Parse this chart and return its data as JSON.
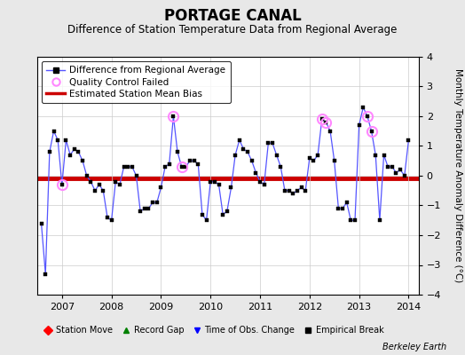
{
  "title": "PORTAGE CANAL",
  "subtitle": "Difference of Station Temperature Data from Regional Average",
  "ylabel": "Monthly Temperature Anomaly Difference (°C)",
  "xlim": [
    2006.5,
    2014.2
  ],
  "ylim": [
    -4,
    4
  ],
  "yticks": [
    -4,
    -3,
    -2,
    -1,
    0,
    1,
    2,
    3,
    4
  ],
  "xticks": [
    2007,
    2008,
    2009,
    2010,
    2011,
    2012,
    2013,
    2014
  ],
  "bias_value": -0.1,
  "background_color": "#e8e8e8",
  "plot_bg_color": "#ffffff",
  "line_color": "#5555ff",
  "bias_color": "#cc0000",
  "qc_color": "#ff88ff",
  "marker_color": "#000000",
  "times": [
    2006.583,
    2006.667,
    2006.75,
    2006.833,
    2006.917,
    2007.0,
    2007.083,
    2007.167,
    2007.25,
    2007.333,
    2007.417,
    2007.5,
    2007.583,
    2007.667,
    2007.75,
    2007.833,
    2007.917,
    2008.0,
    2008.083,
    2008.167,
    2008.25,
    2008.333,
    2008.417,
    2008.5,
    2008.583,
    2008.667,
    2008.75,
    2008.833,
    2008.917,
    2009.0,
    2009.083,
    2009.167,
    2009.25,
    2009.333,
    2009.417,
    2009.5,
    2009.583,
    2009.667,
    2009.75,
    2009.833,
    2009.917,
    2010.0,
    2010.083,
    2010.167,
    2010.25,
    2010.333,
    2010.417,
    2010.5,
    2010.583,
    2010.667,
    2010.75,
    2010.833,
    2010.917,
    2011.0,
    2011.083,
    2011.167,
    2011.25,
    2011.333,
    2011.417,
    2011.5,
    2011.583,
    2011.667,
    2011.75,
    2011.833,
    2011.917,
    2012.0,
    2012.083,
    2012.167,
    2012.25,
    2012.333,
    2012.417,
    2012.5,
    2012.583,
    2012.667,
    2012.75,
    2012.833,
    2012.917,
    2013.0,
    2013.083,
    2013.167,
    2013.25,
    2013.333,
    2013.417,
    2013.5,
    2013.583,
    2013.667,
    2013.75,
    2013.833,
    2013.917,
    2014.0
  ],
  "values": [
    -1.6,
    -3.3,
    0.8,
    1.5,
    1.2,
    -0.3,
    1.2,
    0.7,
    0.9,
    0.8,
    0.5,
    0.0,
    -0.2,
    -0.5,
    -0.3,
    -0.5,
    -1.4,
    -1.5,
    -0.2,
    -0.3,
    0.3,
    0.3,
    0.3,
    0.0,
    -1.2,
    -1.1,
    -1.1,
    -0.9,
    -0.9,
    -0.4,
    0.3,
    0.4,
    2.0,
    0.8,
    0.3,
    0.3,
    0.5,
    0.5,
    0.4,
    -1.3,
    -1.5,
    -0.2,
    -0.2,
    -0.3,
    -1.3,
    -1.2,
    -0.4,
    0.7,
    1.2,
    0.9,
    0.8,
    0.5,
    0.1,
    -0.2,
    -0.3,
    1.1,
    1.1,
    0.7,
    0.3,
    -0.5,
    -0.5,
    -0.6,
    -0.5,
    -0.4,
    -0.5,
    0.6,
    0.5,
    0.7,
    1.9,
    1.8,
    1.5,
    0.5,
    -1.1,
    -1.1,
    -0.9,
    -1.5,
    -1.5,
    1.7,
    2.3,
    2.0,
    1.5,
    0.7,
    -1.5,
    0.7,
    0.3,
    0.3,
    0.1,
    0.2,
    0.0,
    1.2
  ],
  "qc_failed_indices": [
    5,
    32,
    34,
    68,
    69,
    79,
    80
  ],
  "berkeley_earth_text": "Berkeley Earth",
  "font_size_title": 12,
  "font_size_subtitle": 8.5,
  "font_size_tick": 8,
  "font_size_ylabel": 7.5,
  "font_size_legend": 7.5,
  "font_size_bottom_legend": 7
}
